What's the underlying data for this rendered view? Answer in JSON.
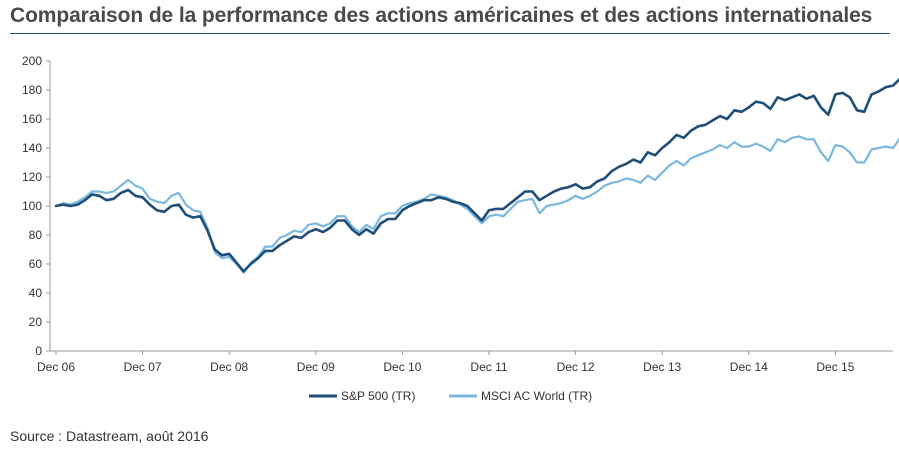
{
  "title": "Comparaison de la performance des actions américaines et des actions internationales",
  "source": "Source : Datastream, août 2016",
  "chart_data": {
    "type": "line",
    "title": "Comparaison de la performance des actions américaines et des actions internationales",
    "xlabel": "",
    "ylabel": "",
    "ylim": [
      0,
      200
    ],
    "yticks": [
      0,
      20,
      40,
      60,
      80,
      100,
      120,
      140,
      160,
      180,
      200
    ],
    "x_tick_labels": [
      "Dec 06",
      "Dec 07",
      "Dec 08",
      "Dec 09",
      "Dec 10",
      "Dec 11",
      "Dec 12",
      "Dec 13",
      "Dec 14",
      "Dec 15"
    ],
    "grid": false,
    "legend_position": "bottom",
    "x_start": "2006-12",
    "x_end": "2016-08",
    "series": [
      {
        "name": "S&P 500 (TR)",
        "color": "#1f4e79",
        "values": [
          100,
          101,
          100,
          101,
          104,
          108,
          107,
          104,
          105,
          109,
          111,
          107,
          106,
          101,
          97,
          96,
          100,
          101,
          94,
          92,
          93,
          83,
          70,
          66,
          67,
          61,
          55,
          60,
          64,
          69,
          69,
          73,
          76,
          79,
          78,
          82,
          84,
          82,
          85,
          90,
          90,
          84,
          80,
          84,
          81,
          88,
          91,
          91,
          97,
          100,
          102,
          104,
          104,
          106,
          105,
          103,
          102,
          100,
          95,
          90,
          97,
          98,
          98,
          102,
          106,
          110,
          110,
          104,
          107,
          110,
          112,
          113,
          115,
          112,
          113,
          117,
          119,
          124,
          127,
          129,
          132,
          130,
          137,
          135,
          140,
          144,
          149,
          147,
          152,
          155,
          156,
          159,
          162,
          160,
          166,
          165,
          168,
          172,
          171,
          167,
          175,
          173,
          175,
          177,
          174,
          176,
          168,
          163,
          177,
          178,
          175,
          166,
          165,
          177,
          179,
          182,
          183,
          188
        ]
      },
      {
        "name": "MSCI AC World (TR)",
        "color": "#7ab8e0",
        "values": [
          100,
          102,
          101,
          103,
          106,
          110,
          110,
          109,
          110,
          114,
          118,
          114,
          112,
          105,
          103,
          102,
          107,
          109,
          101,
          97,
          96,
          85,
          68,
          64,
          65,
          60,
          54,
          61,
          65,
          72,
          72,
          78,
          80,
          83,
          82,
          87,
          88,
          86,
          88,
          93,
          93,
          86,
          82,
          87,
          84,
          93,
          95,
          95,
          100,
          102,
          103,
          105,
          108,
          107,
          106,
          104,
          101,
          98,
          93,
          88,
          93,
          94,
          93,
          98,
          103,
          104,
          105,
          95,
          100,
          101,
          102,
          104,
          107,
          105,
          107,
          110,
          114,
          116,
          117,
          119,
          118,
          116,
          121,
          118,
          123,
          128,
          131,
          128,
          133,
          135,
          137,
          139,
          142,
          140,
          144,
          141,
          141,
          143,
          141,
          138,
          146,
          144,
          147,
          148,
          146,
          146,
          137,
          131,
          142,
          141,
          137,
          130,
          130,
          139,
          140,
          141,
          140,
          147
        ]
      }
    ]
  }
}
